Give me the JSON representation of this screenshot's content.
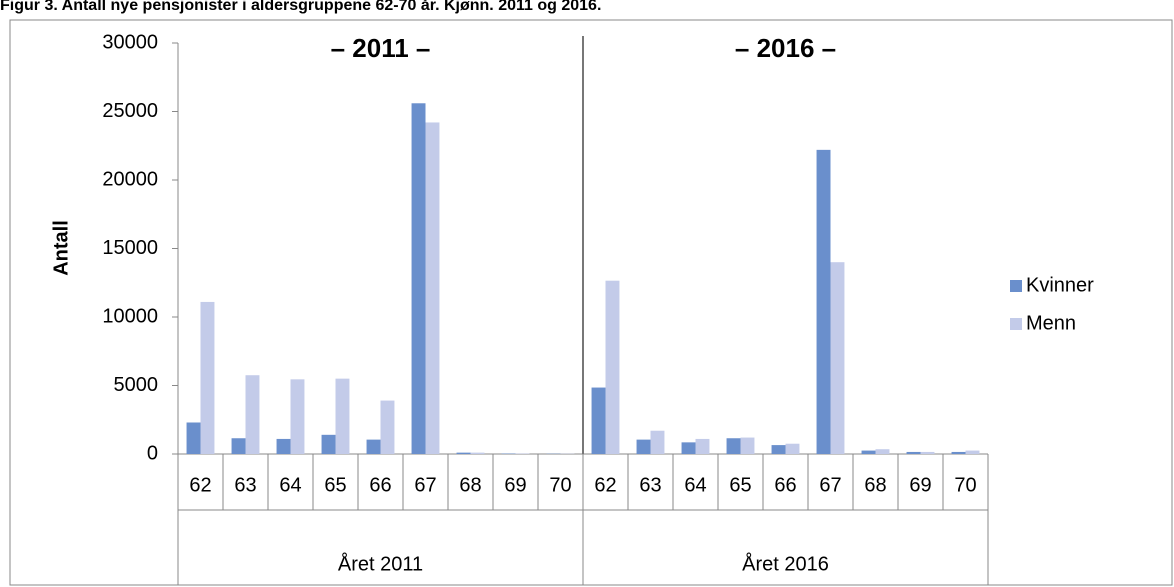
{
  "chart_data": {
    "type": "bar",
    "title": "Figur 3. Antall nye pensjonister i aldersgruppene 62-70 år. Kjønn. 2011 og 2016.",
    "y_label": "Antall",
    "annotations": [
      "– 2011 –",
      "– 2016 –"
    ],
    "groups": [
      "Året 2011",
      "Året 2016"
    ],
    "categories": [
      "62",
      "63",
      "64",
      "65",
      "66",
      "67",
      "68",
      "69",
      "70",
      "62",
      "63",
      "64",
      "65",
      "66",
      "67",
      "68",
      "69",
      "70"
    ],
    "series": [
      {
        "name": "Kvinner",
        "color": "#6a8fcc",
        "values": [
          2300,
          1150,
          1100,
          1400,
          1050,
          25600,
          100,
          30,
          20,
          4850,
          1050,
          850,
          1150,
          650,
          22200,
          250,
          150,
          150
        ]
      },
      {
        "name": "Menn",
        "color": "#c3cbe9",
        "values": [
          11100,
          5750,
          5450,
          5500,
          3900,
          24200,
          100,
          30,
          20,
          12650,
          1700,
          1100,
          1200,
          750,
          14000,
          350,
          150,
          250
        ]
      }
    ],
    "ylim": [
      0,
      30000
    ],
    "yticks": [
      0,
      5000,
      10000,
      15000,
      20000,
      25000,
      30000
    ],
    "legend": "right"
  }
}
